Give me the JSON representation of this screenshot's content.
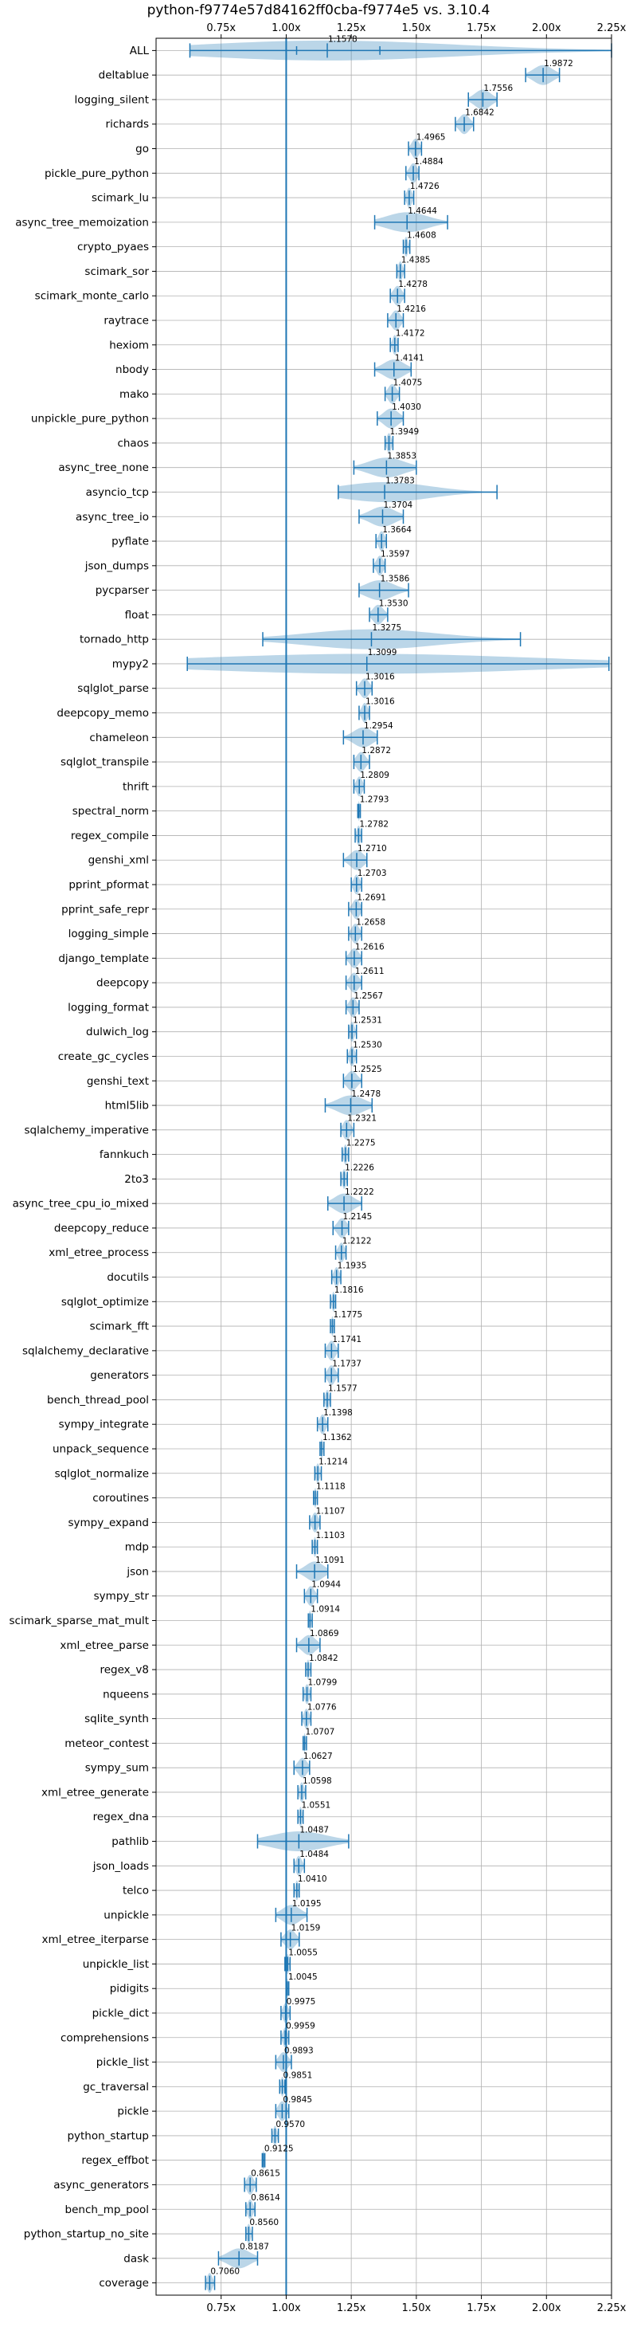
{
  "chart_data": {
    "type": "violin",
    "title": "python-f9774e57d84162ff0cba-f9774e5 vs. 3.10.4",
    "xlabel": "",
    "ylabel": "",
    "xlim": [
      0.5,
      2.25
    ],
    "x_ticks": [
      0.75,
      1.0,
      1.25,
      1.5,
      1.75,
      2.0,
      2.25
    ],
    "x_tick_labels": [
      "0.75x",
      "1.00x",
      "1.25x",
      "1.50x",
      "1.75x",
      "2.00x",
      "2.25x"
    ],
    "reference_line": 1.0,
    "grid": true,
    "series_color": "#1f77b4",
    "benchmarks": [
      {
        "name": "ALL",
        "mean": 1.1578,
        "label": "1.1578",
        "min": 0.63,
        "max": 2.25,
        "q1": 1.04,
        "q3": 1.36,
        "spread": 0.3
      },
      {
        "name": "deltablue",
        "mean": 1.9872,
        "label": "1.9872",
        "min": 1.92,
        "max": 2.05
      },
      {
        "name": "logging_silent",
        "mean": 1.7556,
        "label": "1.7556",
        "min": 1.7,
        "max": 1.81
      },
      {
        "name": "richards",
        "mean": 1.6842,
        "label": "1.6842",
        "min": 1.65,
        "max": 1.72
      },
      {
        "name": "go",
        "mean": 1.4965,
        "label": "1.4965",
        "min": 1.47,
        "max": 1.52
      },
      {
        "name": "pickle_pure_python",
        "mean": 1.4884,
        "label": "1.4884",
        "min": 1.46,
        "max": 1.51
      },
      {
        "name": "scimark_lu",
        "mean": 1.4726,
        "label": "1.4726",
        "min": 1.455,
        "max": 1.49
      },
      {
        "name": "async_tree_memoization",
        "mean": 1.4644,
        "label": "1.4644",
        "min": 1.34,
        "max": 1.62
      },
      {
        "name": "crypto_pyaes",
        "mean": 1.4608,
        "label": "1.4608",
        "min": 1.45,
        "max": 1.475
      },
      {
        "name": "scimark_sor",
        "mean": 1.4385,
        "label": "1.4385",
        "min": 1.425,
        "max": 1.455
      },
      {
        "name": "scimark_monte_carlo",
        "mean": 1.4278,
        "label": "1.4278",
        "min": 1.4,
        "max": 1.455
      },
      {
        "name": "raytrace",
        "mean": 1.4216,
        "label": "1.4216",
        "min": 1.39,
        "max": 1.45
      },
      {
        "name": "hexiom",
        "mean": 1.4172,
        "label": "1.4172",
        "min": 1.4,
        "max": 1.43
      },
      {
        "name": "nbody",
        "mean": 1.4141,
        "label": "1.4141",
        "min": 1.34,
        "max": 1.48
      },
      {
        "name": "mako",
        "mean": 1.4075,
        "label": "1.4075",
        "min": 1.38,
        "max": 1.435
      },
      {
        "name": "unpickle_pure_python",
        "mean": 1.403,
        "label": "1.4030",
        "min": 1.35,
        "max": 1.45
      },
      {
        "name": "chaos",
        "mean": 1.3949,
        "label": "1.3949",
        "min": 1.38,
        "max": 1.41
      },
      {
        "name": "async_tree_none",
        "mean": 1.3853,
        "label": "1.3853",
        "min": 1.26,
        "max": 1.5
      },
      {
        "name": "asyncio_tcp",
        "mean": 1.3783,
        "label": "1.3783",
        "min": 1.2,
        "max": 1.81
      },
      {
        "name": "async_tree_io",
        "mean": 1.3704,
        "label": "1.3704",
        "min": 1.28,
        "max": 1.45
      },
      {
        "name": "pyflate",
        "mean": 1.3664,
        "label": "1.3664",
        "min": 1.345,
        "max": 1.385
      },
      {
        "name": "json_dumps",
        "mean": 1.3597,
        "label": "1.3597",
        "min": 1.335,
        "max": 1.38
      },
      {
        "name": "pycparser",
        "mean": 1.3586,
        "label": "1.3586",
        "min": 1.28,
        "max": 1.47
      },
      {
        "name": "float",
        "mean": 1.353,
        "label": "1.3530",
        "min": 1.32,
        "max": 1.39
      },
      {
        "name": "tornado_http",
        "mean": 1.3275,
        "label": "1.3275",
        "min": 0.91,
        "max": 1.9,
        "spread": 0.25
      },
      {
        "name": "mypy2",
        "mean": 1.3099,
        "label": "1.3099",
        "min": 0.62,
        "max": 2.24,
        "spread": 0.4
      },
      {
        "name": "sqlglot_parse",
        "mean": 1.3016,
        "label": "1.3016",
        "min": 1.27,
        "max": 1.33
      },
      {
        "name": "deepcopy_memo",
        "mean": 1.3016,
        "label": "1.3016",
        "min": 1.28,
        "max": 1.32
      },
      {
        "name": "chameleon",
        "mean": 1.2954,
        "label": "1.2954",
        "min": 1.22,
        "max": 1.35
      },
      {
        "name": "sqlglot_transpile",
        "mean": 1.2872,
        "label": "1.2872",
        "min": 1.26,
        "max": 1.32
      },
      {
        "name": "thrift",
        "mean": 1.2809,
        "label": "1.2809",
        "min": 1.26,
        "max": 1.3
      },
      {
        "name": "spectral_norm",
        "mean": 1.2793,
        "label": "1.2793",
        "min": 1.275,
        "max": 1.285
      },
      {
        "name": "regex_compile",
        "mean": 1.2782,
        "label": "1.2782",
        "min": 1.265,
        "max": 1.29
      },
      {
        "name": "genshi_xml",
        "mean": 1.271,
        "label": "1.2710",
        "min": 1.22,
        "max": 1.31
      },
      {
        "name": "pprint_pformat",
        "mean": 1.2703,
        "label": "1.2703",
        "min": 1.25,
        "max": 1.29
      },
      {
        "name": "pprint_safe_repr",
        "mean": 1.2691,
        "label": "1.2691",
        "min": 1.24,
        "max": 1.29
      },
      {
        "name": "logging_simple",
        "mean": 1.2658,
        "label": "1.2658",
        "min": 1.24,
        "max": 1.29
      },
      {
        "name": "django_template",
        "mean": 1.2616,
        "label": "1.2616",
        "min": 1.23,
        "max": 1.29
      },
      {
        "name": "deepcopy",
        "mean": 1.2611,
        "label": "1.2611",
        "min": 1.23,
        "max": 1.29
      },
      {
        "name": "logging_format",
        "mean": 1.2567,
        "label": "1.2567",
        "min": 1.23,
        "max": 1.28
      },
      {
        "name": "dulwich_log",
        "mean": 1.2531,
        "label": "1.2531",
        "min": 1.24,
        "max": 1.27
      },
      {
        "name": "create_gc_cycles",
        "mean": 1.253,
        "label": "1.2530",
        "min": 1.235,
        "max": 1.27
      },
      {
        "name": "genshi_text",
        "mean": 1.2525,
        "label": "1.2525",
        "min": 1.22,
        "max": 1.29
      },
      {
        "name": "html5lib",
        "mean": 1.2478,
        "label": "1.2478",
        "min": 1.15,
        "max": 1.33
      },
      {
        "name": "sqlalchemy_imperative",
        "mean": 1.2321,
        "label": "1.2321",
        "min": 1.21,
        "max": 1.26
      },
      {
        "name": "fannkuch",
        "mean": 1.2275,
        "label": "1.2275",
        "min": 1.215,
        "max": 1.24
      },
      {
        "name": "2to3",
        "mean": 1.2226,
        "label": "1.2226",
        "min": 1.21,
        "max": 1.235
      },
      {
        "name": "async_tree_cpu_io_mixed",
        "mean": 1.2222,
        "label": "1.2222",
        "min": 1.16,
        "max": 1.29
      },
      {
        "name": "deepcopy_reduce",
        "mean": 1.2145,
        "label": "1.2145",
        "min": 1.18,
        "max": 1.24
      },
      {
        "name": "xml_etree_process",
        "mean": 1.2122,
        "label": "1.2122",
        "min": 1.19,
        "max": 1.23
      },
      {
        "name": "docutils",
        "mean": 1.1935,
        "label": "1.1935",
        "min": 1.175,
        "max": 1.21
      },
      {
        "name": "sqlglot_optimize",
        "mean": 1.1816,
        "label": "1.1816",
        "min": 1.17,
        "max": 1.19
      },
      {
        "name": "scimark_fft",
        "mean": 1.1775,
        "label": "1.1775",
        "min": 1.17,
        "max": 1.185
      },
      {
        "name": "sqlalchemy_declarative",
        "mean": 1.1741,
        "label": "1.1741",
        "min": 1.15,
        "max": 1.2
      },
      {
        "name": "generators",
        "mean": 1.1737,
        "label": "1.1737",
        "min": 1.15,
        "max": 1.2
      },
      {
        "name": "bench_thread_pool",
        "mean": 1.1577,
        "label": "1.1577",
        "min": 1.145,
        "max": 1.17
      },
      {
        "name": "sympy_integrate",
        "mean": 1.1398,
        "label": "1.1398",
        "min": 1.12,
        "max": 1.16
      },
      {
        "name": "unpack_sequence",
        "mean": 1.1362,
        "label": "1.1362",
        "min": 1.13,
        "max": 1.145
      },
      {
        "name": "sqlglot_normalize",
        "mean": 1.1214,
        "label": "1.1214",
        "min": 1.11,
        "max": 1.135
      },
      {
        "name": "coroutines",
        "mean": 1.1118,
        "label": "1.1118",
        "min": 1.105,
        "max": 1.12
      },
      {
        "name": "sympy_expand",
        "mean": 1.1107,
        "label": "1.1107",
        "min": 1.09,
        "max": 1.13
      },
      {
        "name": "mdp",
        "mean": 1.1103,
        "label": "1.1103",
        "min": 1.1,
        "max": 1.12
      },
      {
        "name": "json",
        "mean": 1.1091,
        "label": "1.1091",
        "min": 1.04,
        "max": 1.16
      },
      {
        "name": "sympy_str",
        "mean": 1.0944,
        "label": "1.0944",
        "min": 1.07,
        "max": 1.12
      },
      {
        "name": "scimark_sparse_mat_mult",
        "mean": 1.0914,
        "label": "1.0914",
        "min": 1.085,
        "max": 1.1
      },
      {
        "name": "xml_etree_parse",
        "mean": 1.0869,
        "label": "1.0869",
        "min": 1.04,
        "max": 1.13
      },
      {
        "name": "regex_v8",
        "mean": 1.0842,
        "label": "1.0842",
        "min": 1.075,
        "max": 1.095
      },
      {
        "name": "nqueens",
        "mean": 1.0799,
        "label": "1.0799",
        "min": 1.065,
        "max": 1.095
      },
      {
        "name": "sqlite_synth",
        "mean": 1.0776,
        "label": "1.0776",
        "min": 1.06,
        "max": 1.095
      },
      {
        "name": "meteor_contest",
        "mean": 1.0707,
        "label": "1.0707",
        "min": 1.065,
        "max": 1.078
      },
      {
        "name": "sympy_sum",
        "mean": 1.0627,
        "label": "1.0627",
        "min": 1.03,
        "max": 1.09
      },
      {
        "name": "xml_etree_generate",
        "mean": 1.0598,
        "label": "1.0598",
        "min": 1.045,
        "max": 1.075
      },
      {
        "name": "regex_dna",
        "mean": 1.0551,
        "label": "1.0551",
        "min": 1.045,
        "max": 1.065
      },
      {
        "name": "pathlib",
        "mean": 1.0487,
        "label": "1.0487",
        "min": 0.89,
        "max": 1.24,
        "spread": 0.3
      },
      {
        "name": "json_loads",
        "mean": 1.0484,
        "label": "1.0484",
        "min": 1.03,
        "max": 1.07
      },
      {
        "name": "telco",
        "mean": 1.041,
        "label": "1.0410",
        "min": 1.03,
        "max": 1.05
      },
      {
        "name": "unpickle",
        "mean": 1.0195,
        "label": "1.0195",
        "min": 0.96,
        "max": 1.08
      },
      {
        "name": "xml_etree_iterparse",
        "mean": 1.0159,
        "label": "1.0159",
        "min": 0.98,
        "max": 1.05
      },
      {
        "name": "unpickle_list",
        "mean": 1.0055,
        "label": "1.0055",
        "min": 0.995,
        "max": 1.015
      },
      {
        "name": "pidigits",
        "mean": 1.0045,
        "label": "1.0045",
        "min": 1.0,
        "max": 1.01
      },
      {
        "name": "pickle_dict",
        "mean": 0.9975,
        "label": "0.9975",
        "min": 0.98,
        "max": 1.015
      },
      {
        "name": "comprehensions",
        "mean": 0.9959,
        "label": "0.9959",
        "min": 0.98,
        "max": 1.01
      },
      {
        "name": "pickle_list",
        "mean": 0.9893,
        "label": "0.9893",
        "min": 0.96,
        "max": 1.02
      },
      {
        "name": "gc_traversal",
        "mean": 0.9851,
        "label": "0.9851",
        "min": 0.975,
        "max": 0.995
      },
      {
        "name": "pickle",
        "mean": 0.9845,
        "label": "0.9845",
        "min": 0.96,
        "max": 1.01
      },
      {
        "name": "python_startup",
        "mean": 0.957,
        "label": "0.9570",
        "min": 0.945,
        "max": 0.97
      },
      {
        "name": "regex_effbot",
        "mean": 0.9125,
        "label": "0.9125",
        "min": 0.908,
        "max": 0.918
      },
      {
        "name": "async_generators",
        "mean": 0.8615,
        "label": "0.8615",
        "min": 0.84,
        "max": 0.885
      },
      {
        "name": "bench_mp_pool",
        "mean": 0.8614,
        "label": "0.8614",
        "min": 0.845,
        "max": 0.88
      },
      {
        "name": "python_startup_no_site",
        "mean": 0.856,
        "label": "0.8560",
        "min": 0.845,
        "max": 0.87
      },
      {
        "name": "dask",
        "mean": 0.8187,
        "label": "0.8187",
        "min": 0.74,
        "max": 0.89
      },
      {
        "name": "coverage",
        "mean": 0.706,
        "label": "0.7060",
        "min": 0.69,
        "max": 0.725
      }
    ]
  }
}
